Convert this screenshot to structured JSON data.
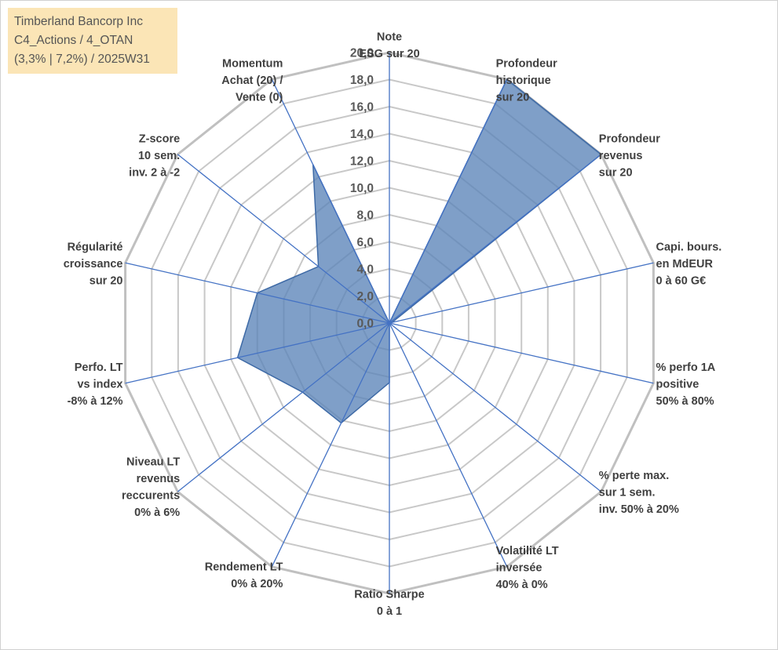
{
  "title_box": {
    "line1": "Timberland Bancorp Inc",
    "line2": "C4_Actions / 4_OTAN",
    "line3": "(3,3% | 7,2%) / 2025W31"
  },
  "colors": {
    "fill": "#5b84b8",
    "stroke": "#3e6aa6",
    "grid_ring": "#c8c8c8",
    "grid_ring_outer": "#c0c0c0",
    "spoke": "#4472c4",
    "title_bg": "#fbe5b6"
  },
  "chart_data": {
    "type": "radar",
    "title": "",
    "rlim": [
      0,
      20
    ],
    "ticks": [
      "0,0",
      "2,0",
      "4,0",
      "6,0",
      "8,0",
      "10,0",
      "12,0",
      "14,0",
      "16,0",
      "18,0",
      "20,0"
    ],
    "grid": true,
    "categories": [
      [
        "Note",
        "ESG sur 20"
      ],
      [
        "Profondeur",
        "historique",
        "sur 20"
      ],
      [
        "Profondeur",
        "revenus",
        "sur 20"
      ],
      [
        "Capi. bours.",
        "en MdEUR",
        "0 à 60 G€"
      ],
      [
        "% perfo 1A",
        "positive",
        "50% à 80%"
      ],
      [
        "% perte max.",
        "sur 1 sem.",
        "inv. 50% à 20%"
      ],
      [
        "Volatilité LT",
        "inversée",
        "40% à 0%"
      ],
      [
        "Ratio Sharpe",
        "0 à 1"
      ],
      [
        "Rendement LT",
        "0% à 20%"
      ],
      [
        "Niveau LT",
        "revenus",
        "reccurents",
        "0% à 6%"
      ],
      [
        "Perfo. LT",
        "vs index",
        "-8% à 12%"
      ],
      [
        "Régularité",
        "croissance",
        "sur 20"
      ],
      [
        "Z-score",
        "10 sem.",
        "inv. 2 à -2"
      ],
      [
        "Momentum",
        "Achat (20) /",
        "Vente (0)"
      ]
    ],
    "series": [
      {
        "values": [
          0,
          20,
          20,
          0.2,
          0,
          0,
          0,
          4.4,
          8.2,
          8.2,
          11.5,
          10.0,
          6.7,
          13.0
        ]
      }
    ]
  }
}
